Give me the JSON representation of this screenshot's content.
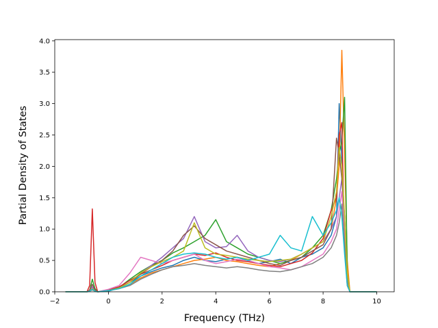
{
  "chart_data": {
    "type": "line",
    "title": "",
    "xlabel": "Frequency (THz)",
    "ylabel": "Partial Density of States",
    "xlim": [
      -2.0,
      10.65
    ],
    "ylim": [
      0.0,
      4.02
    ],
    "x_ticks": [
      -2,
      0,
      2,
      4,
      6,
      8,
      10
    ],
    "x_tick_labels": [
      "−2",
      "0",
      "2",
      "4",
      "6",
      "8",
      "10"
    ],
    "y_ticks": [
      0.0,
      0.5,
      1.0,
      1.5,
      2.0,
      2.5,
      3.0,
      3.5,
      4.0
    ],
    "y_tick_labels": [
      "0.0",
      "0.5",
      "1.0",
      "1.5",
      "2.0",
      "2.5",
      "3.0",
      "3.5",
      "4.0"
    ],
    "grid": false,
    "legend": "none",
    "colors": [
      "#1f77b4",
      "#ff7f0e",
      "#2ca02c",
      "#d62728",
      "#9467bd",
      "#8c564b",
      "#e377c2",
      "#7f7f7f",
      "#bcbd22",
      "#17becf"
    ],
    "x": [
      -1.6,
      -1.2,
      -0.8,
      -0.7,
      -0.6,
      -0.5,
      -0.4,
      0.0,
      0.4,
      0.8,
      1.2,
      1.6,
      2.0,
      2.4,
      2.8,
      3.2,
      3.6,
      4.0,
      4.4,
      4.8,
      5.2,
      5.6,
      6.0,
      6.4,
      6.8,
      7.2,
      7.6,
      8.0,
      8.3,
      8.5,
      8.6,
      8.7,
      8.8,
      8.9,
      9.0,
      10.0
    ],
    "series": [
      {
        "values": [
          0,
          0,
          0,
          0.02,
          0.05,
          0.02,
          0,
          0.01,
          0.06,
          0.15,
          0.25,
          0.32,
          0.38,
          0.42,
          0.5,
          0.55,
          0.5,
          0.48,
          0.52,
          0.55,
          0.5,
          0.45,
          0.48,
          0.52,
          0.45,
          0.55,
          0.6,
          0.7,
          0.9,
          1.2,
          3.0,
          2.1,
          0.8,
          0.2,
          0,
          0
        ]
      },
      {
        "values": [
          0,
          0,
          0,
          0.01,
          0.03,
          0.01,
          0,
          0.02,
          0.05,
          0.12,
          0.22,
          0.3,
          0.35,
          0.4,
          0.45,
          0.5,
          0.52,
          0.55,
          0.5,
          0.48,
          0.45,
          0.42,
          0.4,
          0.45,
          0.5,
          0.6,
          0.7,
          0.8,
          1.0,
          1.5,
          2.0,
          3.85,
          2.2,
          0.5,
          0,
          0
        ]
      },
      {
        "values": [
          0,
          0,
          0,
          0.02,
          0.2,
          0.05,
          0,
          0.02,
          0.07,
          0.2,
          0.32,
          0.42,
          0.5,
          0.62,
          0.7,
          0.8,
          0.9,
          1.15,
          0.8,
          0.7,
          0.6,
          0.55,
          0.5,
          0.45,
          0.5,
          0.55,
          0.7,
          0.9,
          1.3,
          1.8,
          2.2,
          2.4,
          3.1,
          0.3,
          0,
          0
        ]
      },
      {
        "values": [
          0,
          0,
          0,
          0.1,
          1.32,
          0.15,
          0,
          0.03,
          0.08,
          0.18,
          0.28,
          0.35,
          0.42,
          0.5,
          0.55,
          0.6,
          0.58,
          0.62,
          0.55,
          0.5,
          0.48,
          0.45,
          0.42,
          0.4,
          0.45,
          0.5,
          0.62,
          0.85,
          1.3,
          1.5,
          2.5,
          2.7,
          0.7,
          0.1,
          0,
          0
        ]
      },
      {
        "values": [
          0,
          0,
          0,
          0.02,
          0.08,
          0.02,
          0,
          0.02,
          0.06,
          0.15,
          0.3,
          0.42,
          0.55,
          0.7,
          0.85,
          1.2,
          0.8,
          0.7,
          0.72,
          0.9,
          0.65,
          0.55,
          0.5,
          0.48,
          0.52,
          0.6,
          0.7,
          0.8,
          1.0,
          1.2,
          1.5,
          1.8,
          1.0,
          0.2,
          0,
          0
        ]
      },
      {
        "values": [
          0,
          0,
          0,
          0.03,
          0.12,
          0.03,
          0,
          0.02,
          0.07,
          0.15,
          0.28,
          0.4,
          0.5,
          0.65,
          0.9,
          1.05,
          0.85,
          0.75,
          0.65,
          0.6,
          0.55,
          0.5,
          0.45,
          0.42,
          0.5,
          0.55,
          0.65,
          0.75,
          1.0,
          2.45,
          2.2,
          1.8,
          1.2,
          0.2,
          0,
          0
        ]
      },
      {
        "values": [
          0,
          0,
          0,
          0.01,
          0.04,
          0.01,
          0,
          0.04,
          0.1,
          0.3,
          0.55,
          0.5,
          0.45,
          0.5,
          0.55,
          0.6,
          0.5,
          0.45,
          0.48,
          0.52,
          0.5,
          0.45,
          0.4,
          0.38,
          0.35,
          0.4,
          0.5,
          0.6,
          0.8,
          1.0,
          1.3,
          1.6,
          0.9,
          0.2,
          0,
          0
        ]
      },
      {
        "values": [
          0,
          0,
          0,
          0.01,
          0.03,
          0.01,
          0,
          0.02,
          0.05,
          0.1,
          0.2,
          0.28,
          0.35,
          0.4,
          0.42,
          0.45,
          0.42,
          0.4,
          0.38,
          0.4,
          0.38,
          0.35,
          0.33,
          0.32,
          0.35,
          0.4,
          0.45,
          0.55,
          0.7,
          0.9,
          1.1,
          1.4,
          0.8,
          0.2,
          0,
          0
        ]
      },
      {
        "values": [
          0,
          0,
          0,
          0.01,
          0.05,
          0.01,
          0,
          0.02,
          0.06,
          0.15,
          0.3,
          0.4,
          0.48,
          0.55,
          0.65,
          1.1,
          0.7,
          0.6,
          0.58,
          0.55,
          0.52,
          0.5,
          0.48,
          0.5,
          0.52,
          0.6,
          0.7,
          0.8,
          1.2,
          1.6,
          2.3,
          2.0,
          1.2,
          0.3,
          0,
          0
        ]
      },
      {
        "values": [
          0,
          0,
          0,
          0.01,
          0.04,
          0.01,
          0,
          0.02,
          0.05,
          0.12,
          0.25,
          0.35,
          0.45,
          0.55,
          0.6,
          0.62,
          0.6,
          0.55,
          0.52,
          0.55,
          0.5,
          0.55,
          0.6,
          0.9,
          0.7,
          0.65,
          1.2,
          0.9,
          1.1,
          1.3,
          1.5,
          1.2,
          0.6,
          0.1,
          0,
          0
        ]
      }
    ]
  }
}
